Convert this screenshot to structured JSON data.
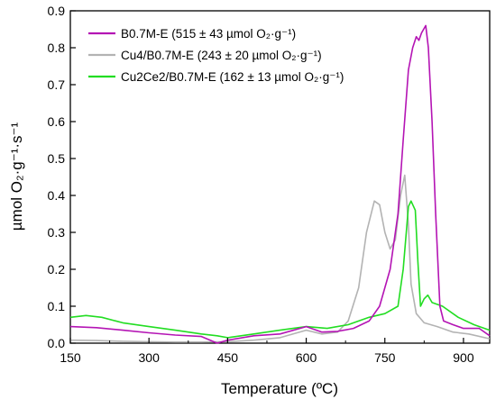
{
  "chart_data": {
    "type": "line",
    "xlabel": "Temperature (ºC)",
    "ylabel": "µmol O₂·g⁻¹·s⁻¹",
    "xlim": [
      150,
      950
    ],
    "ylim": [
      0,
      0.9
    ],
    "xticks": [
      150,
      300,
      450,
      600,
      750,
      900
    ],
    "yticks": [
      0.0,
      0.1,
      0.2,
      0.3,
      0.4,
      0.5,
      0.6,
      0.7,
      0.8,
      0.9
    ],
    "grid": false,
    "legend_position": "top-center",
    "series": [
      {
        "name": "B0.7M-E (515 ± 43 µmol O₂·g⁻¹)",
        "color": "#b414b4",
        "points": [
          [
            150,
            0.045
          ],
          [
            200,
            0.042
          ],
          [
            250,
            0.035
          ],
          [
            300,
            0.028
          ],
          [
            350,
            0.022
          ],
          [
            400,
            0.018
          ],
          [
            430,
            0.0
          ],
          [
            450,
            0.008
          ],
          [
            500,
            0.02
          ],
          [
            550,
            0.025
          ],
          [
            600,
            0.045
          ],
          [
            630,
            0.03
          ],
          [
            660,
            0.032
          ],
          [
            690,
            0.04
          ],
          [
            720,
            0.06
          ],
          [
            740,
            0.1
          ],
          [
            760,
            0.2
          ],
          [
            775,
            0.35
          ],
          [
            785,
            0.55
          ],
          [
            795,
            0.74
          ],
          [
            803,
            0.8
          ],
          [
            810,
            0.83
          ],
          [
            815,
            0.82
          ],
          [
            820,
            0.84
          ],
          [
            828,
            0.86
          ],
          [
            833,
            0.8
          ],
          [
            840,
            0.6
          ],
          [
            847,
            0.35
          ],
          [
            855,
            0.1
          ],
          [
            862,
            0.06
          ],
          [
            880,
            0.05
          ],
          [
            900,
            0.04
          ],
          [
            930,
            0.04
          ],
          [
            950,
            0.02
          ]
        ]
      },
      {
        "name": "Cu4/B0.7M-E (243 ± 20 µmol O₂·g⁻¹)",
        "color": "#b3b3b3",
        "points": [
          [
            150,
            0.008
          ],
          [
            200,
            0.007
          ],
          [
            250,
            0.005
          ],
          [
            300,
            0.004
          ],
          [
            350,
            0.003
          ],
          [
            400,
            0.003
          ],
          [
            450,
            0.004
          ],
          [
            500,
            0.008
          ],
          [
            550,
            0.015
          ],
          [
            600,
            0.035
          ],
          [
            630,
            0.025
          ],
          [
            660,
            0.03
          ],
          [
            680,
            0.06
          ],
          [
            700,
            0.15
          ],
          [
            715,
            0.3
          ],
          [
            730,
            0.385
          ],
          [
            740,
            0.375
          ],
          [
            750,
            0.3
          ],
          [
            760,
            0.255
          ],
          [
            770,
            0.28
          ],
          [
            780,
            0.4
          ],
          [
            788,
            0.455
          ],
          [
            795,
            0.32
          ],
          [
            800,
            0.16
          ],
          [
            810,
            0.08
          ],
          [
            825,
            0.055
          ],
          [
            850,
            0.045
          ],
          [
            880,
            0.03
          ],
          [
            910,
            0.025
          ],
          [
            950,
            0.012
          ]
        ]
      },
      {
        "name": "Cu2Ce2/B0.7M-E (162 ± 13 µmol O₂·g⁻¹)",
        "color": "#22dd22",
        "points": [
          [
            150,
            0.07
          ],
          [
            180,
            0.075
          ],
          [
            210,
            0.07
          ],
          [
            250,
            0.055
          ],
          [
            300,
            0.045
          ],
          [
            350,
            0.035
          ],
          [
            400,
            0.025
          ],
          [
            430,
            0.02
          ],
          [
            450,
            0.015
          ],
          [
            500,
            0.025
          ],
          [
            550,
            0.035
          ],
          [
            600,
            0.045
          ],
          [
            640,
            0.04
          ],
          [
            680,
            0.05
          ],
          [
            720,
            0.07
          ],
          [
            750,
            0.08
          ],
          [
            775,
            0.1
          ],
          [
            785,
            0.2
          ],
          [
            795,
            0.37
          ],
          [
            800,
            0.385
          ],
          [
            808,
            0.36
          ],
          [
            813,
            0.22
          ],
          [
            818,
            0.1
          ],
          [
            825,
            0.12
          ],
          [
            832,
            0.13
          ],
          [
            840,
            0.11
          ],
          [
            860,
            0.1
          ],
          [
            890,
            0.07
          ],
          [
            920,
            0.05
          ],
          [
            950,
            0.035
          ]
        ]
      }
    ]
  }
}
